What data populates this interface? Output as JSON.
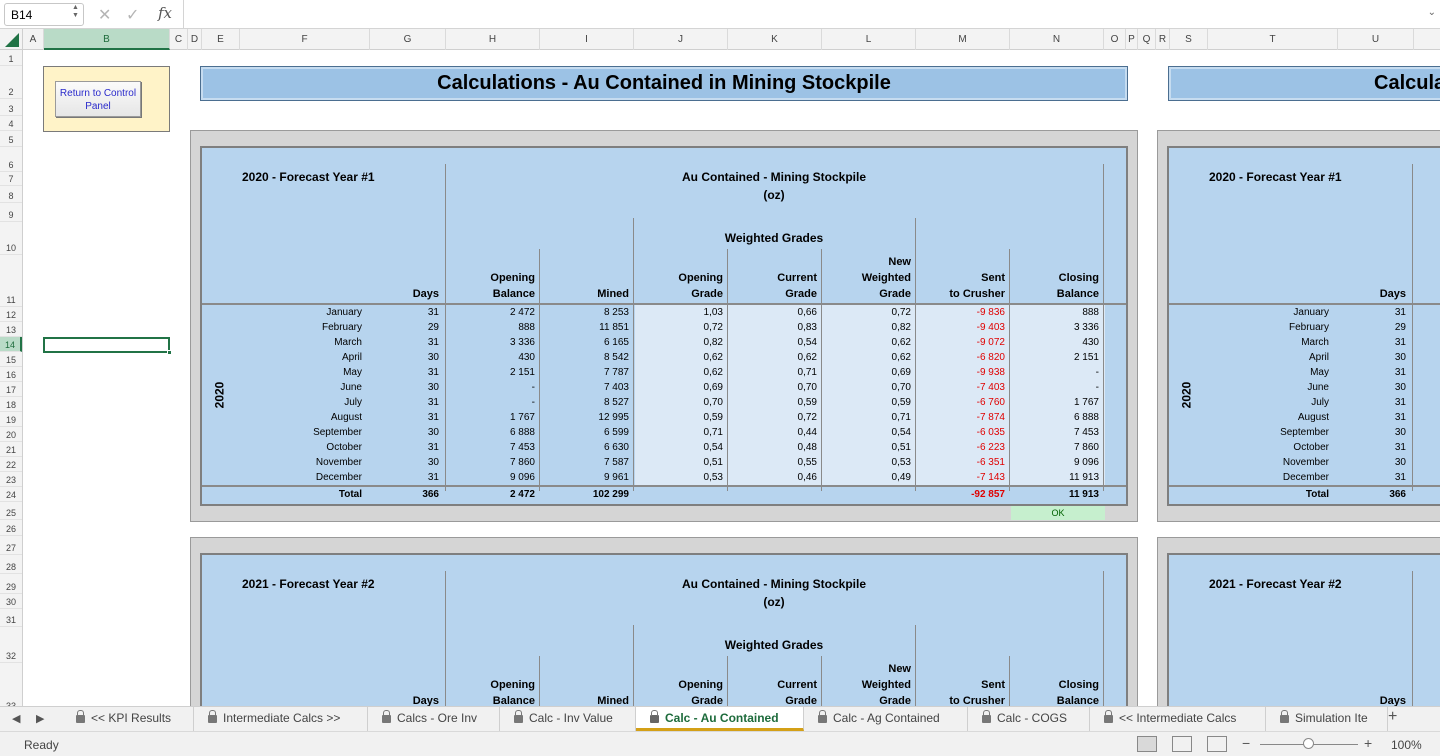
{
  "formula_bar": {
    "name_box": "B14",
    "cancel_icon": "cancel-icon",
    "enter_icon": "check-icon",
    "fx_label": "fx",
    "formula": ""
  },
  "columns": [
    "A",
    "B",
    "C",
    "D",
    "E",
    "F",
    "G",
    "H",
    "I",
    "J",
    "K",
    "L",
    "M",
    "N",
    "O",
    "P",
    "Q",
    "R",
    "S",
    "T",
    "U"
  ],
  "rows": [
    "1",
    "2",
    "3",
    "4",
    "5",
    "6",
    "7",
    "8",
    "9",
    "10",
    "11",
    "12",
    "13",
    "14",
    "15",
    "16",
    "17",
    "18",
    "19",
    "20",
    "21",
    "22",
    "23",
    "24",
    "25",
    "26",
    "27",
    "28",
    "29",
    "30",
    "31",
    "32",
    "33"
  ],
  "control_panel_button": "Return to Control Panel",
  "title": "Calculations - Au Contained  in Mining Stockpile",
  "title_right": "Calcula",
  "table1": {
    "year_label": "2020 - Forecast Year #1",
    "side_label": "2020",
    "group_title": "Au Contained - Mining Stockpile",
    "group_unit": "(oz)",
    "weighted_title": "Weighted Grades",
    "headers": {
      "days": "Days",
      "opening_balance_1": "Opening",
      "opening_balance_2": "Balance",
      "mined": "Mined",
      "opening_grade_1": "Opening",
      "opening_grade_2": "Grade",
      "current_grade_1": "Current",
      "current_grade_2": "Grade",
      "new_weighted_1": "New",
      "new_weighted_2": "Weighted",
      "new_weighted_3": "Grade",
      "sent_1": "Sent",
      "sent_2": "to Crusher",
      "closing_1": "Closing",
      "closing_2": "Balance"
    },
    "rows": [
      [
        "January",
        "31",
        "2 472",
        "8 253",
        "1,03",
        "0,66",
        "0,72",
        "-9 836",
        "888"
      ],
      [
        "February",
        "29",
        "888",
        "11 851",
        "0,72",
        "0,83",
        "0,82",
        "-9 403",
        "3 336"
      ],
      [
        "March",
        "31",
        "3 336",
        "6 165",
        "0,82",
        "0,54",
        "0,62",
        "-9 072",
        "430"
      ],
      [
        "April",
        "30",
        "430",
        "8 542",
        "0,62",
        "0,62",
        "0,62",
        "-6 820",
        "2 151"
      ],
      [
        "May",
        "31",
        "2 151",
        "7 787",
        "0,62",
        "0,71",
        "0,69",
        "-9 938",
        "-"
      ],
      [
        "June",
        "30",
        "-",
        "7 403",
        "0,69",
        "0,70",
        "0,70",
        "-7 403",
        "-"
      ],
      [
        "July",
        "31",
        "-",
        "8 527",
        "0,70",
        "0,59",
        "0,59",
        "-6 760",
        "1 767"
      ],
      [
        "August",
        "31",
        "1 767",
        "12 995",
        "0,59",
        "0,72",
        "0,71",
        "-7 874",
        "6 888"
      ],
      [
        "September",
        "30",
        "6 888",
        "6 599",
        "0,71",
        "0,44",
        "0,54",
        "-6 035",
        "7 453"
      ],
      [
        "October",
        "31",
        "7 453",
        "6 630",
        "0,54",
        "0,48",
        "0,51",
        "-6 223",
        "7 860"
      ],
      [
        "November",
        "30",
        "7 860",
        "7 587",
        "0,51",
        "0,55",
        "0,53",
        "-6 351",
        "9 096"
      ],
      [
        "December",
        "31",
        "9 096",
        "9 961",
        "0,53",
        "0,46",
        "0,49",
        "-7 143",
        "11 913"
      ]
    ],
    "total": [
      "Total",
      "366",
      "2 472",
      "102 299",
      "",
      "",
      "",
      "-92 857",
      "11 913"
    ],
    "check": "OK"
  },
  "table2": {
    "year_label": "2021 - Forecast Year #2",
    "group_title": "Au Contained - Mining Stockpile",
    "group_unit": "(oz)",
    "weighted_title": "Weighted Grades",
    "headers": {
      "days": "Days",
      "opening_balance_1": "Opening",
      "opening_balance_2": "Balance",
      "mined": "Mined",
      "opening_grade_1": "Opening",
      "opening_grade_2": "Grade",
      "current_grade_1": "Current",
      "current_grade_2": "Grade",
      "new_weighted_1": "New",
      "new_weighted_2": "Weighted",
      "new_weighted_3": "Grade",
      "sent_1": "Sent",
      "sent_2": "to Crusher",
      "closing_1": "Closing",
      "closing_2": "Balance"
    }
  },
  "right_table1": {
    "year_label": "2020 - Forecast Year #1",
    "side_label": "2020",
    "days_header": "Days",
    "months": [
      "January",
      "February",
      "March",
      "April",
      "May",
      "June",
      "July",
      "August",
      "September",
      "October",
      "November",
      "December"
    ],
    "days": [
      "31",
      "29",
      "31",
      "30",
      "31",
      "30",
      "31",
      "31",
      "30",
      "31",
      "30",
      "31"
    ],
    "total_label": "Total",
    "total_days": "366"
  },
  "right_table2": {
    "year_label": "2021 - Forecast Year #2",
    "days_header": "Days"
  },
  "sheet_tabs": [
    {
      "label": "<< KPI Results",
      "locked": true
    },
    {
      "label": "Intermediate Calcs >>",
      "locked": true
    },
    {
      "label": "Calcs - Ore Inv",
      "locked": true
    },
    {
      "label": "Calc - Inv Value",
      "locked": true
    },
    {
      "label": "Calc - Au Contained",
      "locked": true,
      "active": true
    },
    {
      "label": "Calc - Ag Contained",
      "locked": true
    },
    {
      "label": "Calc - COGS",
      "locked": true
    },
    {
      "label": "<< Intermediate Calcs",
      "locked": true
    },
    {
      "label": "Simulation Ite",
      "locked": true
    }
  ],
  "status": {
    "text": "Ready",
    "zoom": "100%"
  },
  "colors": {
    "excel_green": "#217346",
    "panel_blue": "#b7d4ee",
    "title_blue": "#9cc2e5",
    "negative_red": "#e00000",
    "ok_green": "#c6efce"
  }
}
